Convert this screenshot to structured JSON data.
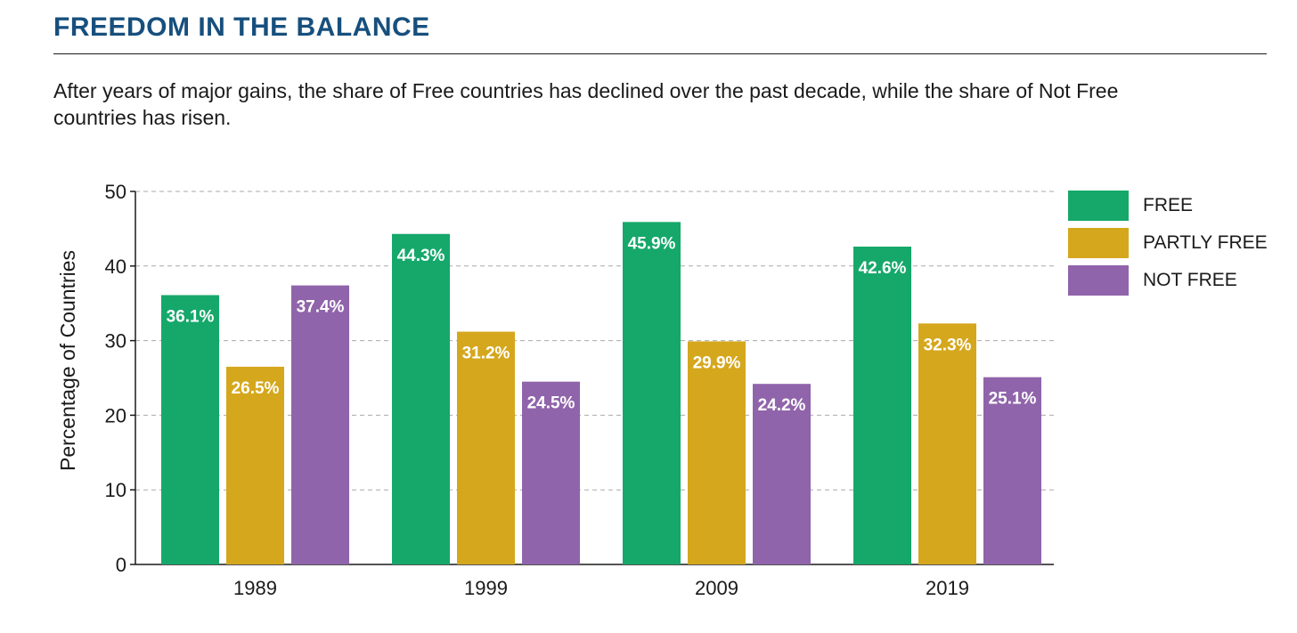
{
  "header": {
    "title": "FREEDOM IN THE BALANCE",
    "subtitle": "After years of major gains, the share of Free countries has declined over the past decade, while the share of Not Free countries has risen."
  },
  "colors": {
    "title": "#174f7d",
    "free": "#15a86a",
    "partly_free": "#d5a71d",
    "not_free": "#9064aa"
  },
  "chart_data": {
    "type": "bar",
    "title": "FREEDOM IN THE BALANCE",
    "subtitle": "After years of major gains, the share of Free countries has declined over the past decade, while the share of Not Free countries has risen.",
    "xlabel": "",
    "ylabel": "Percentage of Countries",
    "ylim": [
      0,
      50
    ],
    "yticks": [
      0,
      10,
      20,
      30,
      40,
      50
    ],
    "grid": true,
    "legend_position": "right",
    "categories": [
      "1989",
      "1999",
      "2009",
      "2019"
    ],
    "series": [
      {
        "name": "FREE",
        "color": "#15a86a",
        "values": [
          36.1,
          44.3,
          45.9,
          42.6
        ],
        "labels": [
          "36.1%",
          "44.3%",
          "45.9%",
          "42.6%"
        ]
      },
      {
        "name": "PARTLY FREE",
        "color": "#d5a71d",
        "values": [
          26.5,
          31.2,
          29.9,
          32.3
        ],
        "labels": [
          "26.5%",
          "31.2%",
          "29.9%",
          "32.3%"
        ]
      },
      {
        "name": "NOT FREE",
        "color": "#9064aa",
        "values": [
          37.4,
          24.5,
          24.2,
          25.1
        ],
        "labels": [
          "37.4%",
          "24.5%",
          "24.2%",
          "25.1%"
        ]
      }
    ]
  }
}
